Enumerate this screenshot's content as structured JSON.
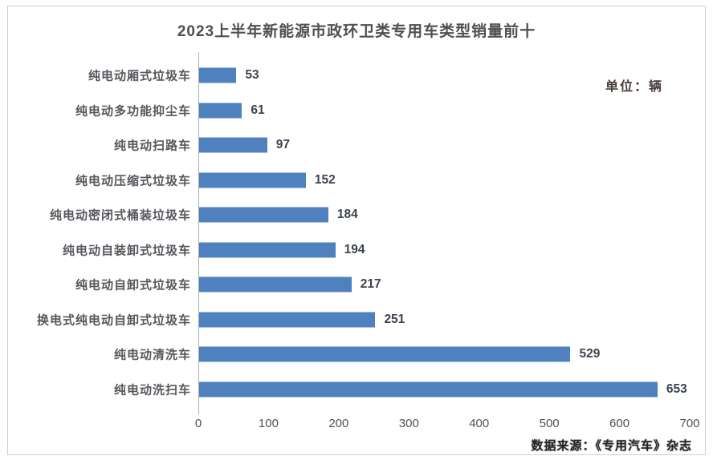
{
  "chart_data": {
    "type": "bar",
    "orientation": "horizontal",
    "title": "2023上半年新能源市政环卫类专用车类型销量前十",
    "unit_label": "单位：辆",
    "categories": [
      "纯电动厢式垃圾车",
      "纯电动多功能抑尘车",
      "纯电动扫路车",
      "纯电动压缩式垃圾车",
      "纯电动密闭式桶装垃圾车",
      "纯电动自装卸式垃圾车",
      "纯电动自卸式垃圾车",
      "换电式纯电动自卸式垃圾车",
      "纯电动清洗车",
      "纯电动洗扫车"
    ],
    "values": [
      53,
      61,
      97,
      152,
      184,
      194,
      217,
      251,
      529,
      653
    ],
    "x_ticks": [
      0,
      100,
      200,
      300,
      400,
      500,
      600,
      700
    ],
    "xlim": [
      0,
      700
    ],
    "bar_color": "#4e81bd",
    "grid": false,
    "legend": false,
    "source_note": "数据来源：《专用汽车》杂志"
  }
}
